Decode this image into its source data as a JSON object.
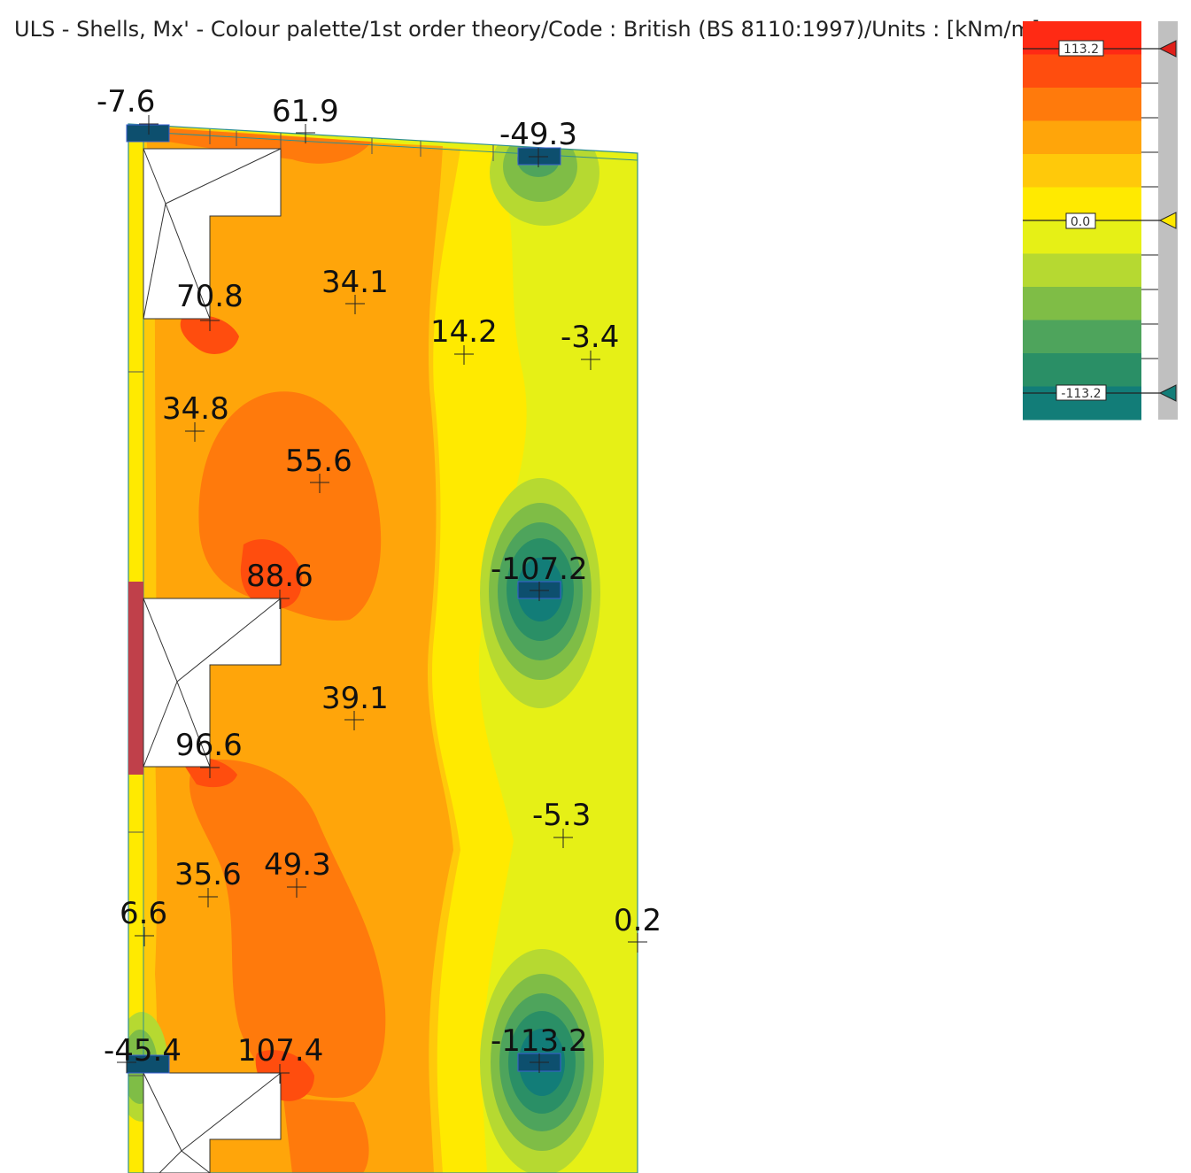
{
  "title": "ULS - Shells, Mx' - Colour palette/1st order theory/Code : British (BS 8110:1997)/Units : [kNm/m]",
  "colors": {
    "red": "#ff2a14",
    "red_orange": "#ff4d0e",
    "orange": "#ff7a0c",
    "light_orange": "#ffa50a",
    "amber": "#ffc90a",
    "yellow": "#ffea00",
    "yellow_green": "#e6f016",
    "light_green": "#b6d931",
    "green": "#7fbd46",
    "mid_green": "#4ea45c",
    "teal_green": "#2a8f66",
    "teal": "#127d78",
    "column_blue": "#0d4f6e",
    "edge_red": "#c0404a",
    "scale_bar": "#c0c0c0"
  },
  "legend": {
    "max_label": "113.2",
    "zero_label": "0.0",
    "min_label": "-113.2",
    "bands": [
      "#ff2a14",
      "#ff4d0e",
      "#ff7a0c",
      "#ffa50a",
      "#ffc90a",
      "#ffea00",
      "#e6f016",
      "#b6d931",
      "#7fbd46",
      "#4ea45c",
      "#2a8f66",
      "#127d78"
    ]
  },
  "values": [
    {
      "id": "v1",
      "text": "-7.6"
    },
    {
      "id": "v2",
      "text": "61.9"
    },
    {
      "id": "v3",
      "text": "-49.3"
    },
    {
      "id": "v4",
      "text": "70.8"
    },
    {
      "id": "v5",
      "text": "34.1"
    },
    {
      "id": "v6",
      "text": "14.2"
    },
    {
      "id": "v7",
      "text": "-3.4"
    },
    {
      "id": "v8",
      "text": "34.8"
    },
    {
      "id": "v9",
      "text": "55.6"
    },
    {
      "id": "v10",
      "text": "88.6"
    },
    {
      "id": "v11",
      "text": "-107.2"
    },
    {
      "id": "v12",
      "text": "39.1"
    },
    {
      "id": "v13",
      "text": "96.6"
    },
    {
      "id": "v14",
      "text": "-5.3"
    },
    {
      "id": "v15",
      "text": "35.6"
    },
    {
      "id": "v16",
      "text": "49.3"
    },
    {
      "id": "v17",
      "text": "6.6"
    },
    {
      "id": "v18",
      "text": "0.2"
    },
    {
      "id": "v19",
      "text": "-45.4"
    },
    {
      "id": "v20",
      "text": "107.4"
    },
    {
      "id": "v21",
      "text": "-113.2"
    }
  ]
}
